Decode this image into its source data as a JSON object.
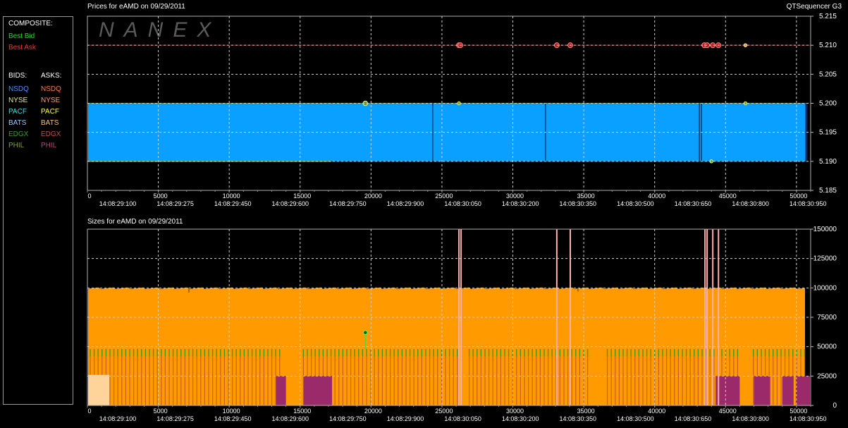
{
  "header": {
    "prices_title": "Prices for  eAMD  on  09/29/2011",
    "sizes_title": "Sizes for  eAMD  on  09/29/2011",
    "app_name": "QTSequencer G3",
    "watermark": "NANEX"
  },
  "legend": {
    "composite_label": "COMPOSITE:",
    "best_bid": {
      "label": "Best Bid",
      "color": "#22dd22"
    },
    "best_ask": {
      "label": "Best Ask",
      "color": "#ff3030"
    },
    "bids_label": "BIDS:",
    "asks_label": "ASKS:",
    "exchanges": [
      {
        "bid": "NSDQ",
        "ask": "NSDQ",
        "bid_color": "#4f8fff",
        "ask_color": "#ff7a4a"
      },
      {
        "bid": "NYSE",
        "ask": "NYSE",
        "bid_color": "#e8e8a0",
        "ask_color": "#ff9a70"
      },
      {
        "bid": "PACF",
        "ask": "PACF",
        "bid_color": "#40e0e0",
        "ask_color": "#ffff40"
      },
      {
        "bid": "BATS",
        "ask": "BATS",
        "bid_color": "#a0c8ff",
        "ask_color": "#ffc080"
      },
      {
        "bid": "EDGX",
        "ask": "EDGX",
        "bid_color": "#3a9a3a",
        "ask_color": "#c05050"
      },
      {
        "bid": "PHIL",
        "ask": "PHIL",
        "bid_color": "#80a040",
        "ask_color": "#c04070"
      }
    ]
  },
  "x_ticks": {
    "values": [
      0,
      5000,
      10000,
      15000,
      20000,
      25000,
      30000,
      35000,
      40000,
      45000,
      50000
    ],
    "time_labels": [
      "14:08:29:100",
      "14:08:29:275",
      "14:08:29:450",
      "14:08:29:600",
      "14:08:29:750",
      "14:08:29:900",
      "14:08:30:050",
      "14:08:30:200",
      "14:08:30:350",
      "14:08:30:500",
      "14:08:30:650",
      "14:08:30:800",
      "14:08:30:950"
    ]
  },
  "chart_data": [
    {
      "type": "area",
      "name": "prices",
      "xlim": [
        0,
        51000
      ],
      "ylim": [
        5.185,
        5.215
      ],
      "y_ticks": [
        "5.215",
        "5.210",
        "5.205",
        "5.200",
        "5.195",
        "5.190",
        "5.185"
      ],
      "grid": true,
      "best_bid": 5.19,
      "best_ask": 5.21,
      "bid_band": {
        "low": 5.19,
        "high": 5.2,
        "color": "#0aa0ff"
      },
      "gaps_x": [
        24350,
        32300,
        43150,
        43300
      ],
      "ask_line": 5.21,
      "ask_points_x": [
        26200,
        26300,
        33100,
        34050,
        43500,
        43700,
        44100,
        44500
      ],
      "ask_small_points_x": [
        46400
      ],
      "bid_points": [
        {
          "x": 19600,
          "y": 5.2
        },
        {
          "x": 26200,
          "y": 5.2
        },
        {
          "x": 46400,
          "y": 5.2
        },
        {
          "x": 44000,
          "y": 5.19
        }
      ]
    },
    {
      "type": "area",
      "name": "sizes",
      "xlim": [
        0,
        51000
      ],
      "ylim": [
        0,
        150000
      ],
      "y_ticks": [
        "150000",
        "125000",
        "100000",
        "75000",
        "50000",
        "25000",
        "0"
      ],
      "grid": true,
      "orange_level": 100000,
      "green_tick_level": 48000,
      "dark_orange_level": 42000,
      "light_band": {
        "x0": 0,
        "x1": 1500,
        "level": 26000
      },
      "purple_blocks": [
        [
          13300,
          14000
        ],
        [
          15250,
          17250
        ],
        [
          44300,
          46000
        ],
        [
          47000,
          48150
        ],
        [
          49000,
          49800
        ],
        [
          49950,
          50950
        ]
      ],
      "ask_spikes_x": [
        26200,
        26350,
        33100,
        34050,
        43550,
        43700,
        44100,
        44500
      ],
      "bid_marker": {
        "x": 19600,
        "y": 62000
      }
    }
  ]
}
